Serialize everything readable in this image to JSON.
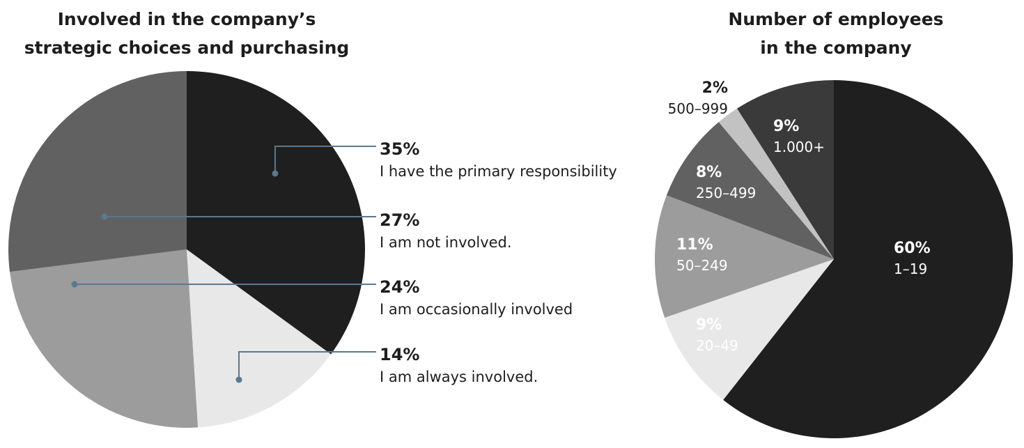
{
  "chart_data": [
    {
      "type": "pie",
      "title_lines": [
        "Involved in the company’s",
        "strategic choices and purchasing"
      ],
      "slices": [
        {
          "value": 35,
          "pct_label": "35%",
          "label": "I have the primary responsibility",
          "color": "#1f1f1f"
        },
        {
          "value": 14,
          "pct_label": "14%",
          "label": "I am always involved.",
          "color": "#e8e8e8"
        },
        {
          "value": 24,
          "pct_label": "24%",
          "label": "I am occasionally involved",
          "color": "#9c9c9c"
        },
        {
          "value": 27,
          "pct_label": "27%",
          "label": "I am not involved.",
          "color": "#616161"
        }
      ],
      "leader_color": "#5a7890"
    },
    {
      "type": "pie",
      "title_lines": [
        "Number of employees",
        "in the company"
      ],
      "slices": [
        {
          "value": 60,
          "pct_label": "60%",
          "label": "1–19",
          "color": "#1f1f1f",
          "text_color": "#ffffff"
        },
        {
          "value": 9,
          "pct_label": "9%",
          "label": "20–49",
          "color": "#e8e8e8",
          "text_color": "#ffffff"
        },
        {
          "value": 11,
          "pct_label": "11%",
          "label": "50–249",
          "color": "#9c9c9c",
          "text_color": "#ffffff"
        },
        {
          "value": 8,
          "pct_label": "8%",
          "label": "250–499",
          "color": "#616161",
          "text_color": "#ffffff"
        },
        {
          "value": 2,
          "pct_label": "2%",
          "label": "500–999",
          "color": "#c2c2c2",
          "text_color": "#1d1d1d"
        },
        {
          "value": 9,
          "pct_label": "9%",
          "label": "1.000+",
          "color": "#3a3a3a",
          "text_color": "#ffffff"
        }
      ]
    }
  ]
}
